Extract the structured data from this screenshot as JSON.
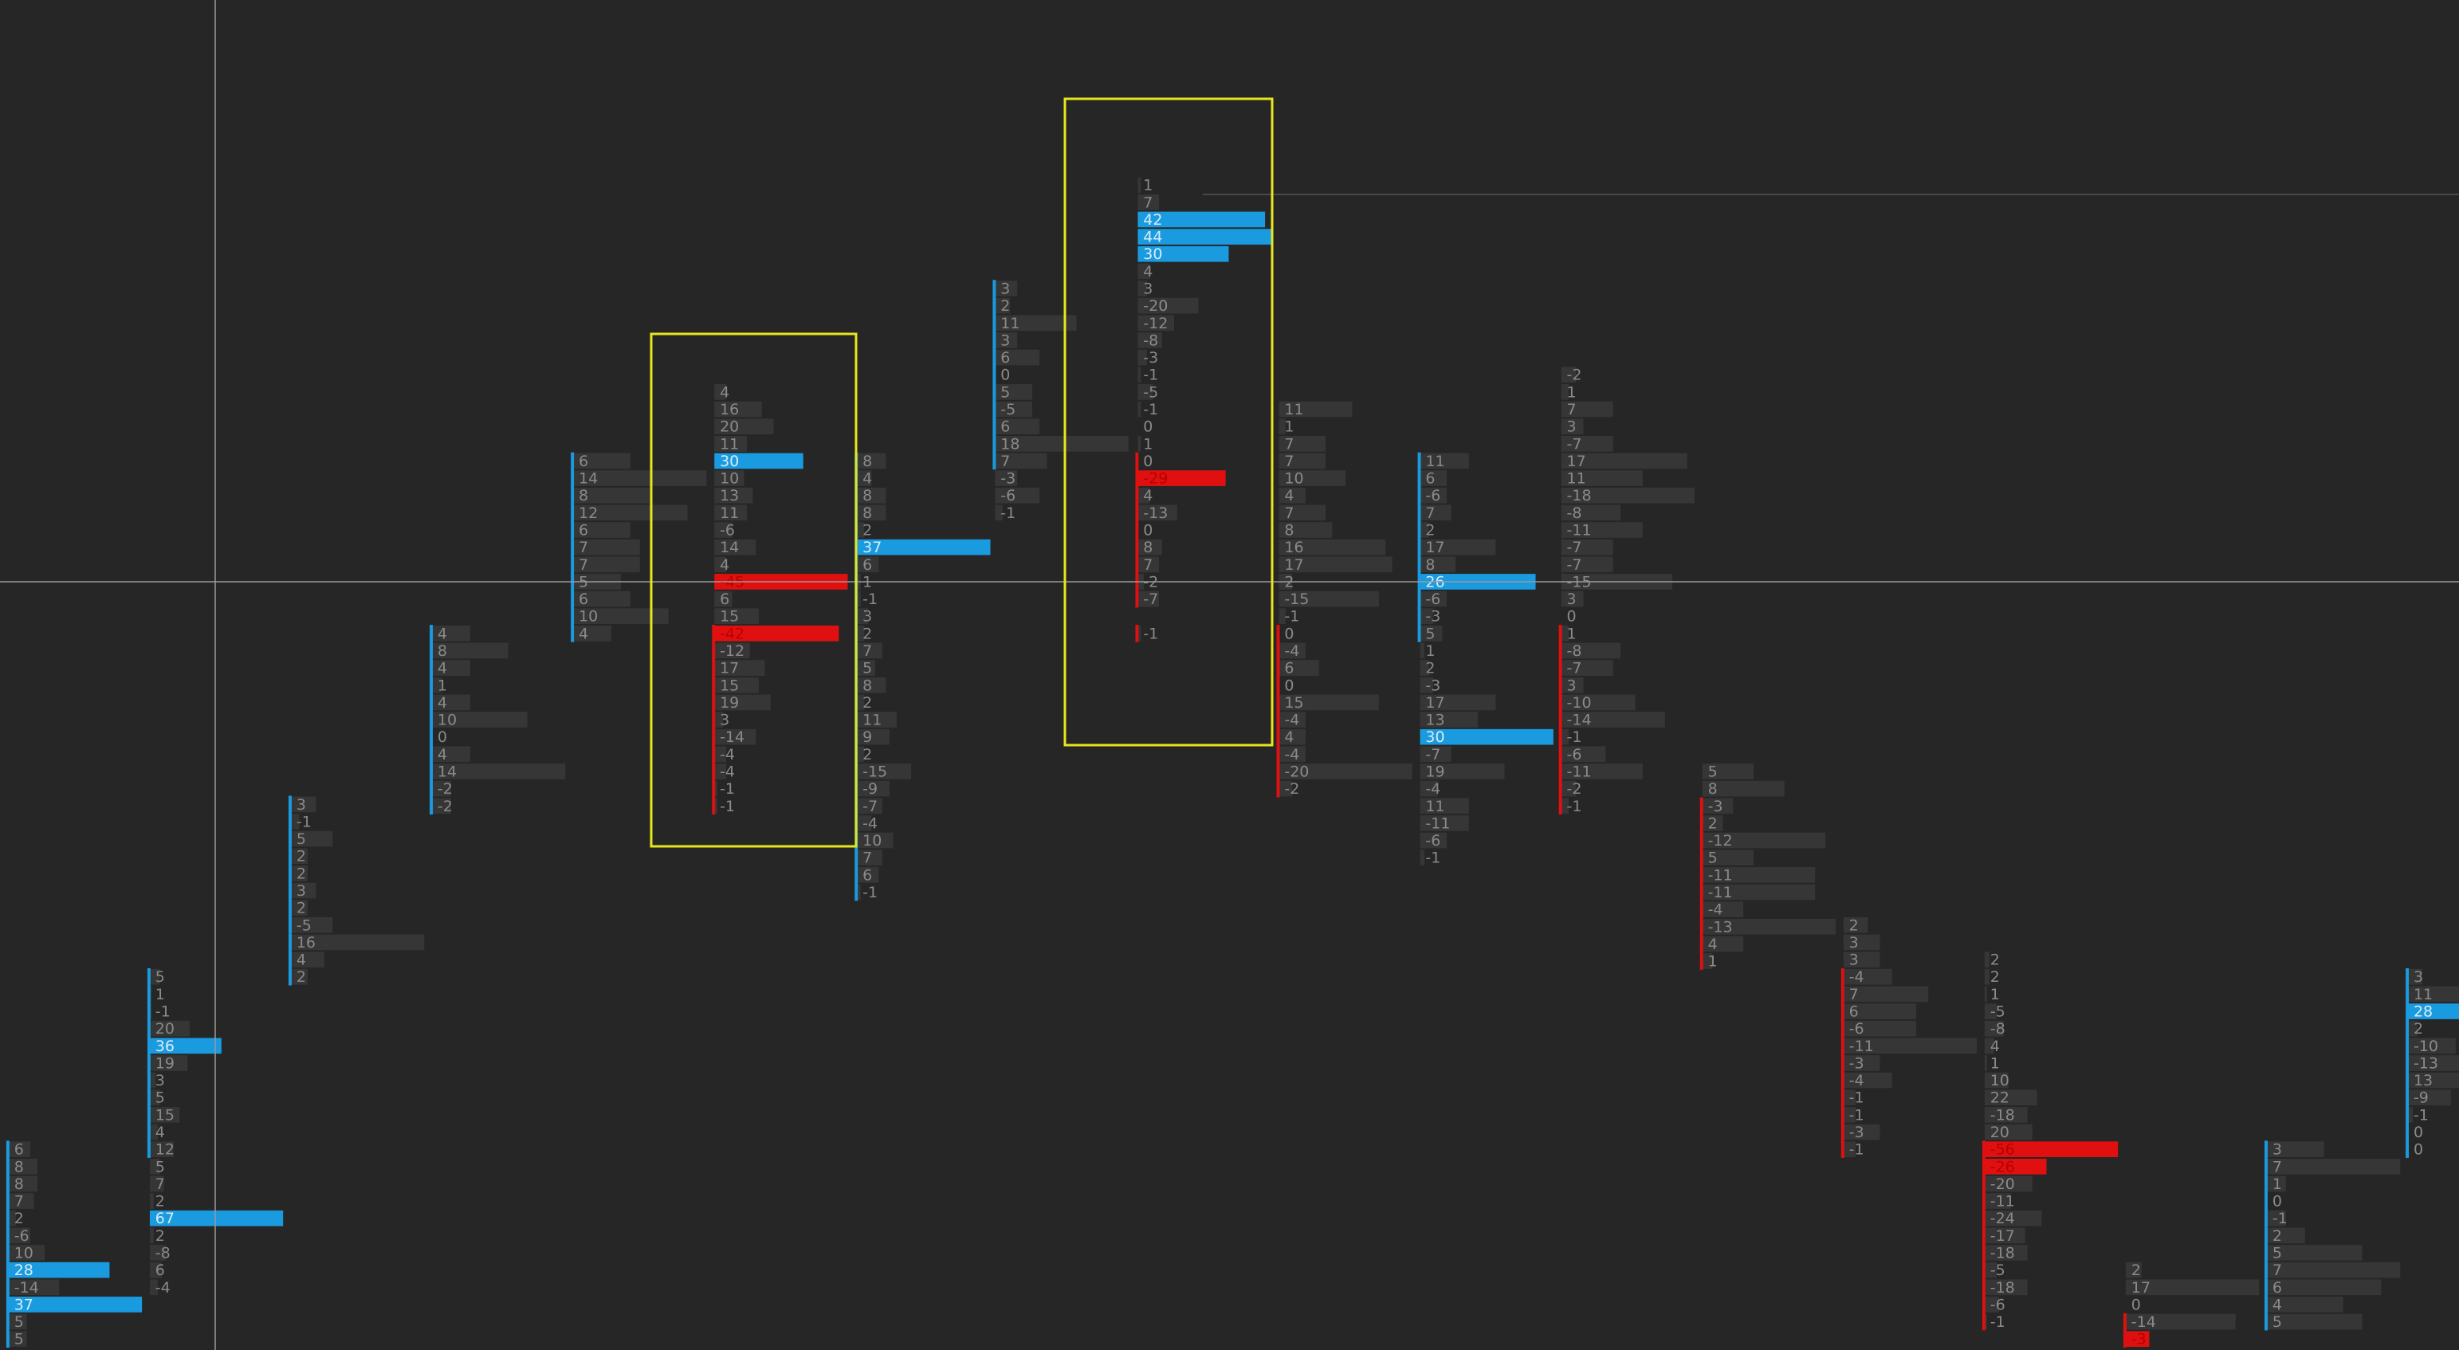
{
  "columns": [
    {
      "marker": "#1a9be0",
      "cells": [
        6,
        8,
        8,
        7,
        2,
        -6,
        10,
        {
          "value": 28,
          "highlight": "#1a9be0"
        },
        -14,
        {
          "value": 37,
          "highlight": "#1a9be0"
        },
        5,
        5
      ]
    },
    {
      "marker": "#1a9be0",
      "cells": [
        5,
        1,
        -1,
        20,
        {
          "value": 36,
          "highlight": "#1a9be0"
        },
        19,
        3,
        5,
        15,
        4,
        12
      ]
    },
    {
      "cells": [
        5,
        7,
        2,
        {
          "value": 67,
          "highlight": "#1a9be0"
        },
        2,
        -8,
        6,
        -4
      ]
    },
    {
      "marker": "#1a9be0",
      "cells": [
        3,
        -1,
        5,
        2,
        2,
        3,
        2,
        -5
      ]
    },
    {
      "marker": "#1a9be0",
      "cells": [
        16,
        4,
        2
      ]
    },
    {
      "marker": "#1a9be0",
      "cells": [
        4,
        8,
        4,
        1,
        4,
        10,
        0,
        4,
        14,
        -2,
        -2
      ]
    },
    {
      "marker": "#1a9be0",
      "cells": [
        6,
        14,
        8,
        12,
        6,
        7,
        7,
        5,
        6,
        10,
        4
      ]
    },
    {
      "cells": [
        4,
        16,
        20,
        11,
        {
          "value": 30,
          "highlight": "#1a9be0"
        },
        10,
        13,
        11,
        -6,
        14,
        4,
        {
          "value": -45,
          "highlight": "#e01010"
        },
        6,
        15
      ]
    },
    {
      "marker": "#e01010",
      "cells": [
        {
          "value": -42,
          "highlight": "#e01010"
        },
        -12,
        17,
        15,
        19,
        3,
        -14,
        -4,
        -4,
        -1,
        -1
      ]
    },
    {
      "marker": "#1a9be0",
      "cells": [
        8,
        4,
        8,
        8,
        2,
        {
          "value": 37,
          "highlight": "#1a9be0"
        },
        6,
        1,
        -1,
        3,
        2,
        7,
        5,
        8,
        2,
        11,
        9,
        2,
        -15,
        -9,
        -7,
        -4,
        10,
        7,
        6,
        -1
      ]
    },
    {
      "marker": "#1a9be0",
      "cells": [
        3,
        2,
        11,
        3,
        6,
        0,
        5,
        -5,
        6,
        18,
        7
      ]
    },
    {
      "cells": [
        -3,
        -6,
        -1
      ]
    },
    {
      "cells": [
        1,
        7,
        {
          "value": 42,
          "highlight": "#1a9be0"
        },
        {
          "value": 44,
          "highlight": "#1a9be0"
        },
        {
          "value": 30,
          "highlight": "#1a9be0"
        },
        4,
        3,
        -20,
        -12,
        -8,
        -3,
        -1,
        -5,
        -1,
        0,
        1
      ]
    },
    {
      "marker": "#e01010",
      "cells": [
        0,
        {
          "value": -29,
          "highlight": "#e01010"
        },
        4,
        -13,
        0,
        8,
        7,
        -2,
        -7
      ]
    },
    {
      "marker": "#e01010",
      "cells": [
        -1
      ]
    },
    {
      "cells": [
        11,
        1,
        7,
        7,
        10,
        4,
        7,
        8,
        16,
        17,
        2,
        -15,
        -1
      ]
    },
    {
      "marker": "#e01010",
      "cells": [
        0,
        -4,
        6,
        0,
        15,
        -4,
        4,
        -4,
        -20,
        -2
      ]
    },
    {
      "marker": "#1a9be0",
      "cells": [
        11,
        6,
        -6,
        7,
        2,
        17,
        8,
        {
          "value": 26,
          "highlight": "#1a9be0"
        },
        -6,
        -3,
        5
      ]
    },
    {
      "cells": [
        1,
        2,
        -3,
        17,
        13,
        {
          "value": 30,
          "highlight": "#1a9be0"
        },
        -7,
        19,
        -4,
        11,
        -11,
        -6,
        -1
      ]
    },
    {
      "cells": [
        -2,
        1,
        7,
        3,
        -7,
        17,
        11,
        -18,
        -8,
        -11,
        -7,
        -7,
        -15,
        3,
        0
      ]
    },
    {
      "marker": "#e01010",
      "cells": [
        1,
        -8,
        -7,
        3,
        -10,
        -14,
        -1,
        -6,
        -11,
        -2,
        -1
      ]
    },
    {
      "cells": [
        5,
        8
      ]
    },
    {
      "marker": "#e01010",
      "cells": [
        -3,
        2,
        -12,
        5,
        -11,
        -11,
        -4,
        -13,
        4,
        1
      ]
    },
    {
      "cells": [
        2,
        3,
        3
      ]
    },
    {
      "marker": "#e01010",
      "cells": [
        -4,
        7,
        6,
        -6,
        -11,
        -3,
        -4,
        -1,
        -1,
        -3,
        -1
      ]
    },
    {
      "cells": [
        2,
        2,
        1,
        -5,
        -8,
        4,
        1,
        10,
        22,
        -18,
        20
      ]
    },
    {
      "marker": "#e01010",
      "cells": [
        {
          "value": -56,
          "highlight": "#e01010"
        },
        {
          "value": -26,
          "highlight": "#e01010"
        },
        -20,
        -11,
        -24,
        -17,
        -18,
        -5,
        -18,
        -6,
        -1
      ]
    },
    {
      "cells": [
        2,
        17,
        0
      ]
    },
    {
      "marker": "#e01010",
      "cells": [
        -14,
        {
          "value": -3,
          "highlight": "#e01010"
        }
      ]
    },
    {
      "marker": "#1a9be0",
      "cells": [
        3,
        7,
        1,
        0,
        -1,
        2,
        5,
        7,
        6,
        4,
        5
      ]
    },
    {
      "marker": "#1a9be0",
      "cells": [
        3,
        11,
        {
          "value": 28,
          "highlight": "#1a9be0"
        },
        2,
        -10,
        -13,
        13,
        -9,
        -1,
        0,
        0
      ]
    }
  ]
}
